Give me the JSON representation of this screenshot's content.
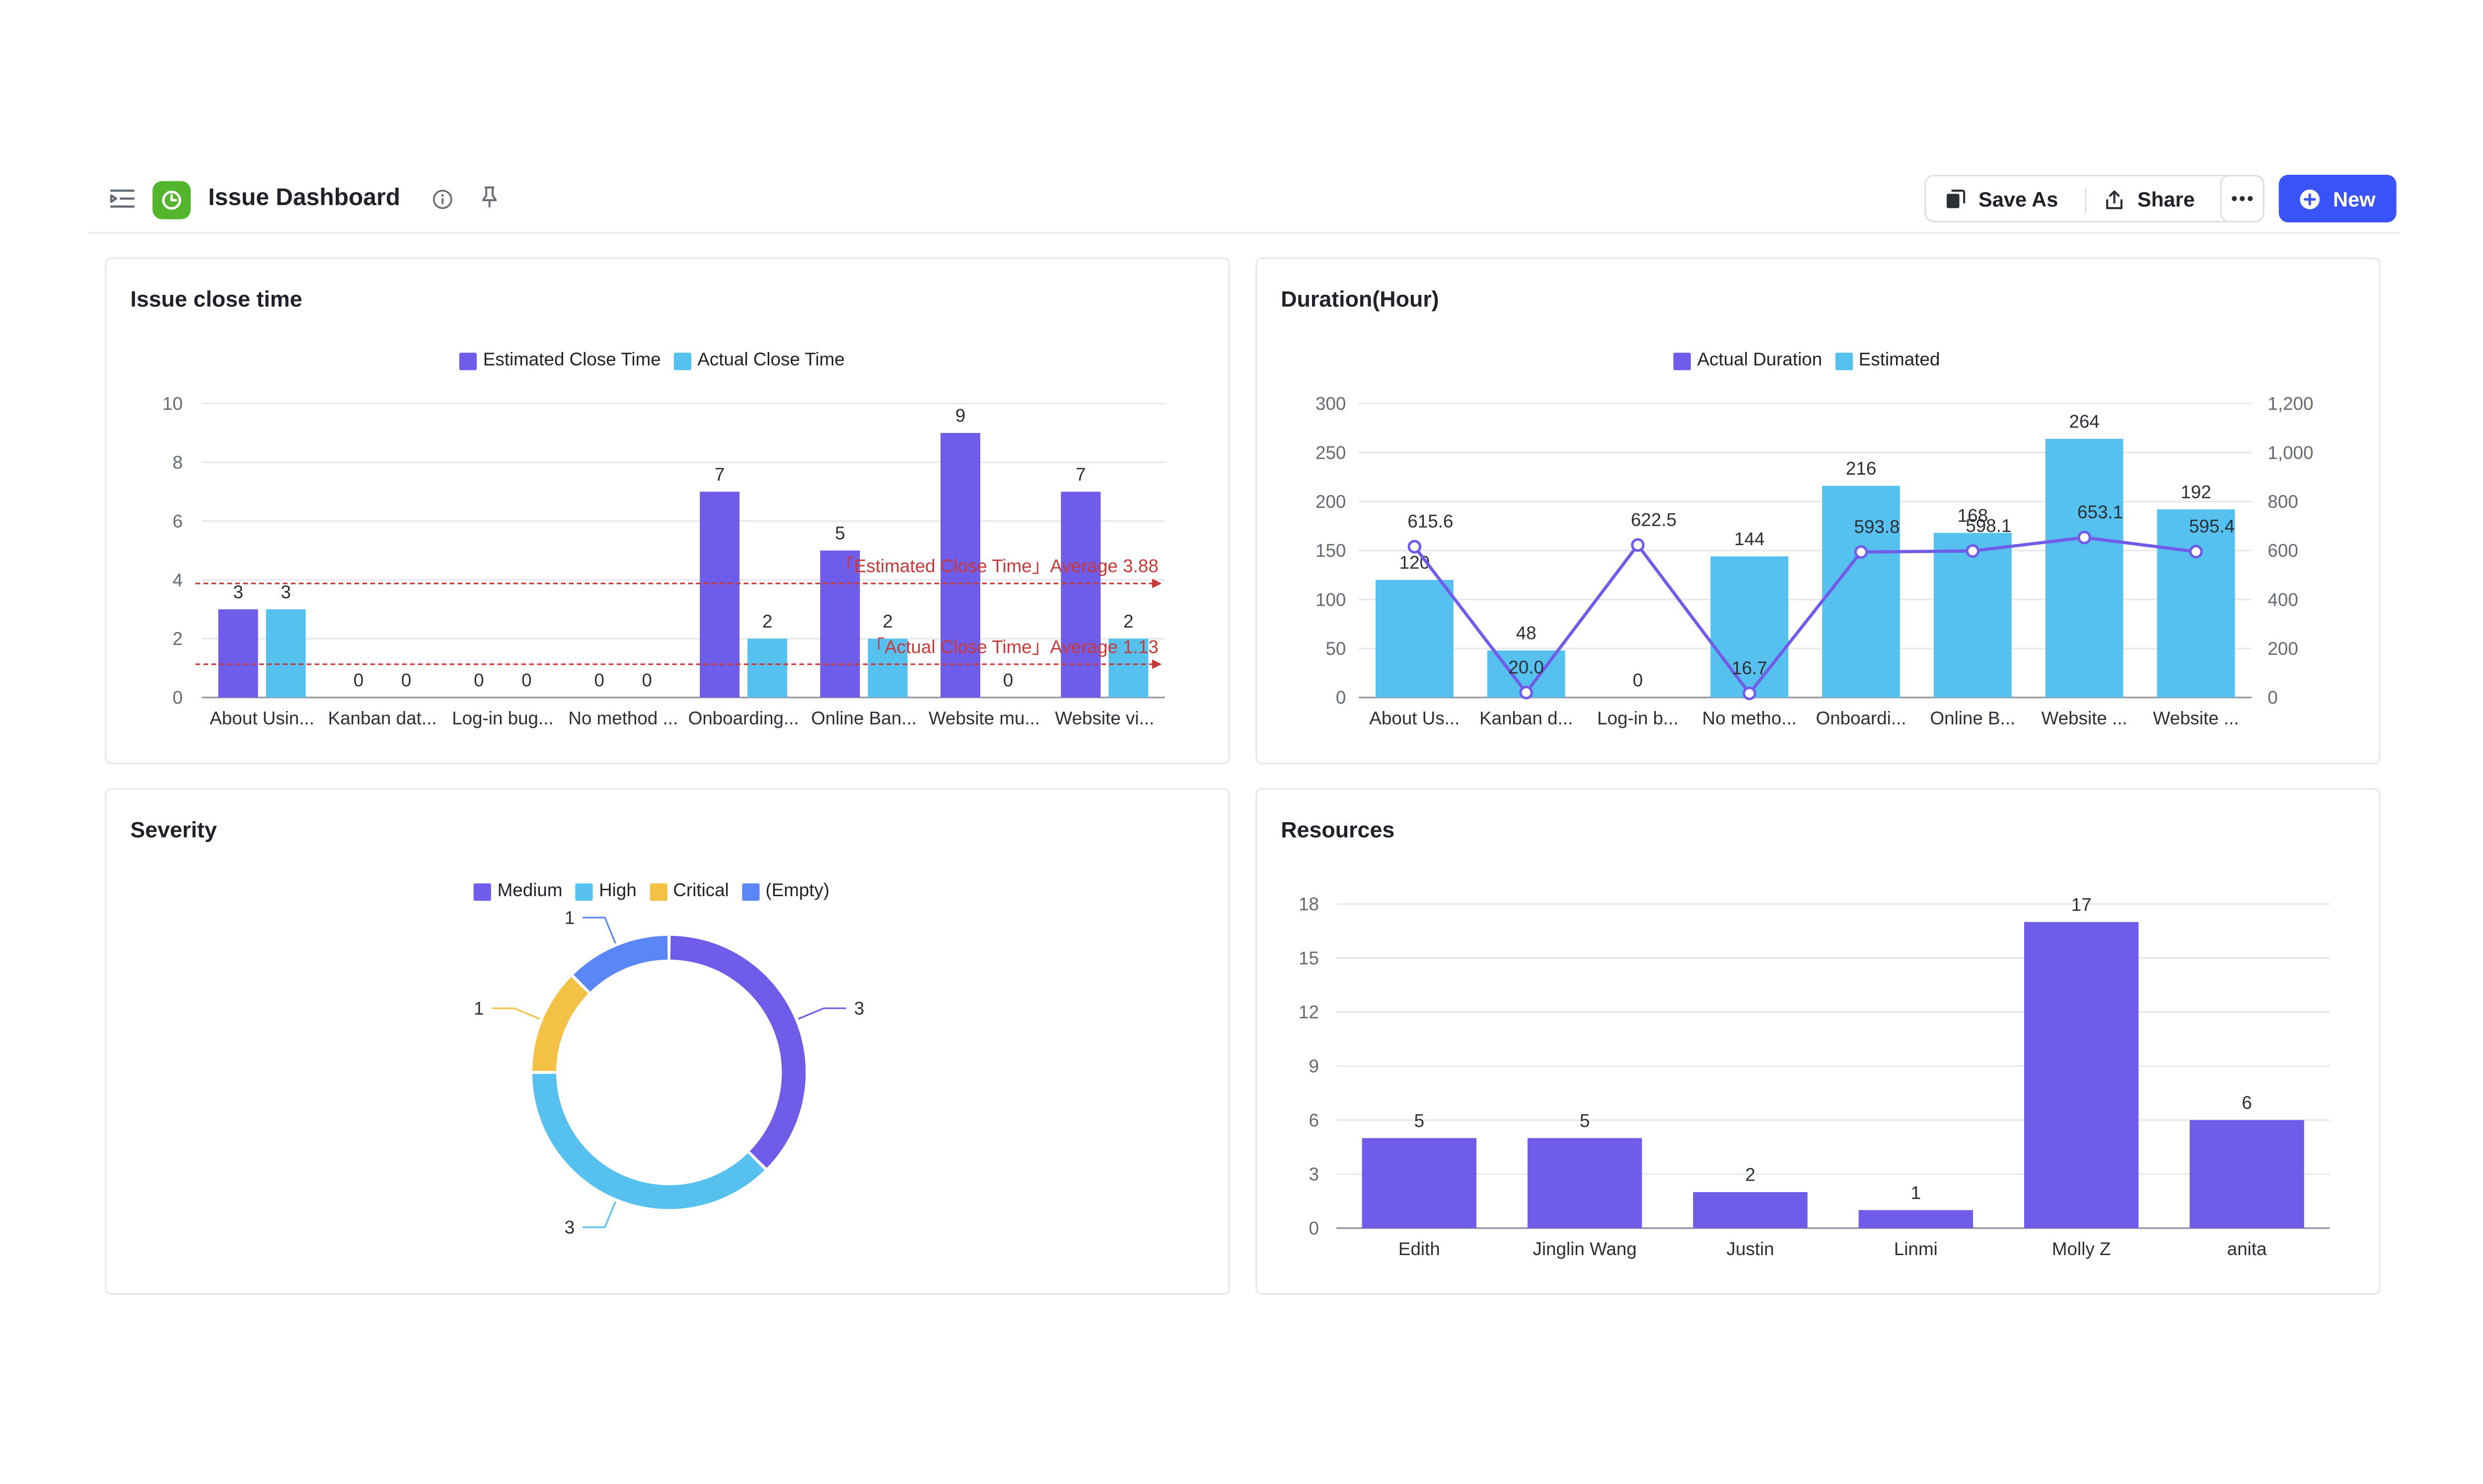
{
  "header": {
    "title": "Issue Dashboard",
    "save_as_label": "Save As",
    "share_label": "Share",
    "new_label": "New",
    "colors": {
      "app_icon": "#52b52c",
      "primary": "#3a53f6"
    }
  },
  "colors": {
    "purple": "#6f5ce8",
    "cyan": "#56c0ee",
    "yellow": "#f3c244",
    "blue": "#5b86f5",
    "avg_line": "#c83a3a"
  },
  "charts": {
    "close_time": {
      "title": "Issue close time",
      "legend": [
        "Estimated Close Time",
        "Actual Close Time"
      ],
      "avg_labels": [
        "「Estimated Close Time」Average 3.88",
        "「Actual Close Time」Average 1.13"
      ]
    },
    "duration": {
      "title": "Duration(Hour)",
      "legend": [
        "Actual Duration",
        "Estimated"
      ]
    },
    "severity": {
      "title": "Severity",
      "legend": [
        "Medium",
        "High",
        "Critical",
        "(Empty)"
      ]
    },
    "resources": {
      "title": "Resources"
    }
  },
  "chart_data": [
    {
      "type": "bar",
      "title": "Issue close time",
      "categories": [
        "About Usin...",
        "Kanban dat...",
        "Log-in bug...",
        "No method ...",
        "Onboarding...",
        "Online Ban...",
        "Website mu...",
        "Website vi..."
      ],
      "series": [
        {
          "name": "Estimated Close Time",
          "values": [
            3,
            0,
            0,
            0,
            7,
            5,
            9,
            7
          ]
        },
        {
          "name": "Actual Close Time",
          "values": [
            3,
            0,
            0,
            0,
            2,
            2,
            0,
            2
          ]
        }
      ],
      "averages": [
        3.88,
        1.13
      ],
      "ylim": [
        0,
        10
      ],
      "yticks": [
        0,
        2,
        4,
        6,
        8,
        10
      ],
      "legend_position": "top"
    },
    {
      "type": "bar",
      "title": "Duration(Hour)",
      "categories": [
        "About Us...",
        "Kanban d...",
        "Log-in b...",
        "No metho...",
        "Onboardi...",
        "Online B...",
        "Website ...",
        "Website ..."
      ],
      "series": [
        {
          "name": "Estimated",
          "type": "bar",
          "axis": "left",
          "values": [
            120,
            48,
            0,
            144,
            216,
            168,
            264,
            192
          ]
        },
        {
          "name": "Actual Duration",
          "type": "line",
          "axis": "right",
          "values": [
            615.6,
            20.0,
            622.5,
            16.7,
            593.8,
            598.1,
            653.1,
            595.4
          ]
        }
      ],
      "ylim_left": [
        0,
        300
      ],
      "yticks_left": [
        0,
        50,
        100,
        150,
        200,
        250,
        300
      ],
      "ylim_right": [
        0,
        1200
      ],
      "yticks_right": [
        "0",
        "200",
        "400",
        "600",
        "800",
        "1,000",
        "1,200"
      ],
      "legend_position": "top"
    },
    {
      "type": "pie",
      "title": "Severity",
      "labels": [
        "Medium",
        "High",
        "Critical",
        "(Empty)"
      ],
      "values": [
        3,
        3,
        1,
        1
      ],
      "legend_position": "top"
    },
    {
      "type": "bar",
      "title": "Resources",
      "categories": [
        "Edith",
        "Jinglin Wang",
        "Justin",
        "Linmi",
        "Molly Z",
        "anita"
      ],
      "values": [
        5,
        5,
        2,
        1,
        17,
        6
      ],
      "ylim": [
        0,
        18
      ],
      "yticks": [
        0,
        3,
        6,
        9,
        12,
        15,
        18
      ]
    }
  ]
}
